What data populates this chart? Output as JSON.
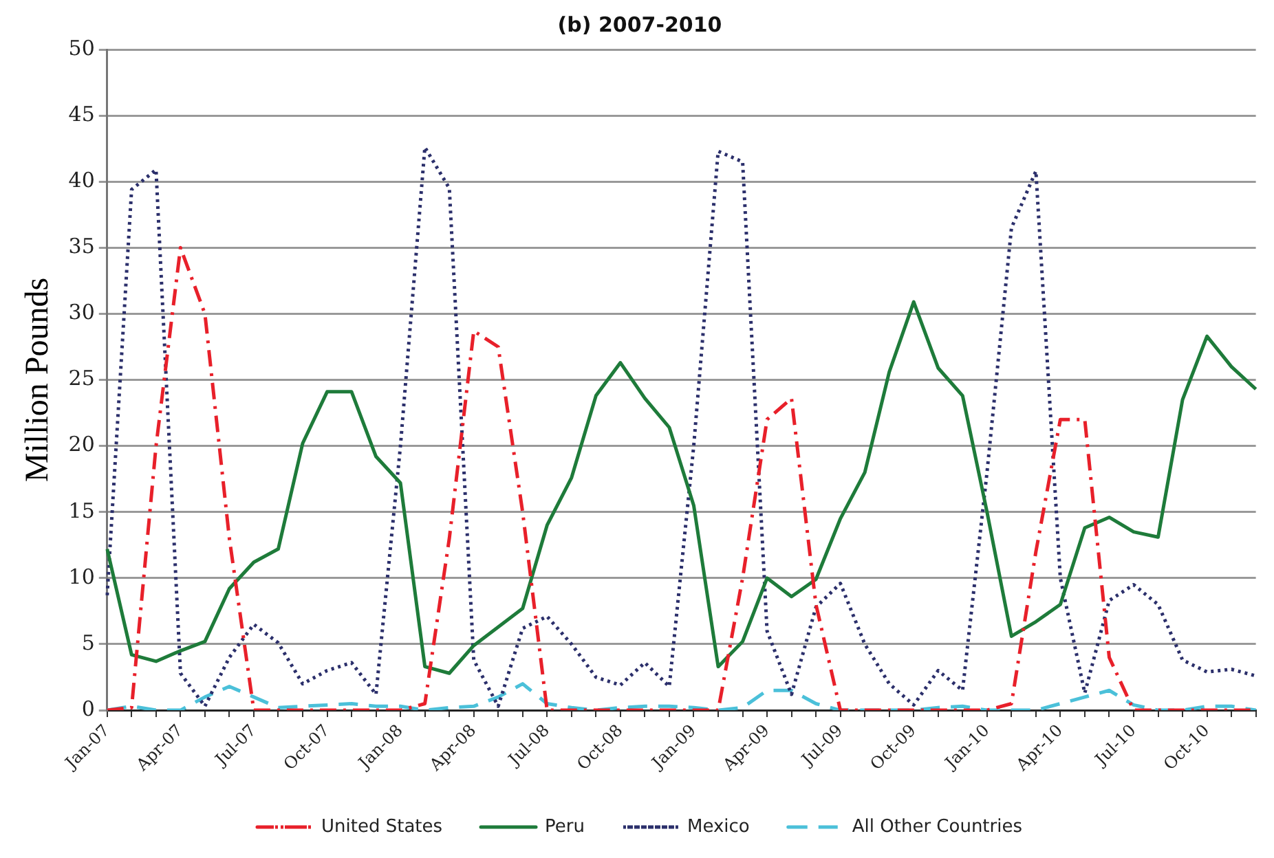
{
  "chart_data": {
    "type": "line",
    "title": "(b) 2007-2010",
    "ylabel": "Million Pounds",
    "categories": [
      "Jan-07",
      null,
      null,
      "Apr-07",
      null,
      null,
      "Jul-07",
      null,
      null,
      "Oct-07",
      null,
      null,
      "Jan-08",
      null,
      null,
      "Apr-08",
      null,
      null,
      "Jul-08",
      null,
      null,
      "Oct-08",
      null,
      null,
      "Jan-09",
      null,
      null,
      "Apr-09",
      null,
      null,
      "Jul-09",
      null,
      null,
      "Oct-09",
      null,
      null,
      "Jan-10",
      null,
      null,
      "Apr-10",
      null,
      null,
      "Jul-10",
      null,
      null,
      "Oct-10",
      null,
      null
    ],
    "series": [
      {
        "name": "United States",
        "color": "#e8202a",
        "line_style": "dashdot",
        "values": [
          0,
          0.2,
          20,
          35,
          30,
          13,
          0,
          0,
          0,
          0,
          0,
          0,
          0,
          0.5,
          13,
          28.7,
          27.5,
          15,
          0,
          0,
          0,
          0,
          0,
          0,
          0,
          0,
          10,
          22,
          23.6,
          8,
          0,
          0,
          0,
          0,
          0,
          0,
          0,
          0.5,
          12,
          22,
          22,
          4,
          0,
          0,
          0,
          0,
          0,
          0
        ]
      },
      {
        "name": "Peru",
        "color": "#1e7b3a",
        "line_style": "solid",
        "values": [
          12.2,
          4.2,
          3.7,
          4.5,
          5.2,
          9.2,
          11.2,
          12.2,
          20.2,
          24.1,
          24.1,
          19.2,
          17.2,
          3.3,
          2.8,
          4.9,
          6.3,
          7.7,
          14,
          17.6,
          23.8,
          26.3,
          23.6,
          21.4,
          15.5,
          3.3,
          5.2,
          10,
          8.6,
          9.9,
          14.5,
          18,
          25.6,
          30.9,
          25.9,
          23.8,
          15,
          5.6,
          6.7,
          8,
          13.8,
          14.6,
          13.5,
          13.1,
          23.5,
          28.3,
          26,
          24.3
        ]
      },
      {
        "name": "Mexico",
        "color": "#2b2f6b",
        "line_style": "dotted",
        "values": [
          8.7,
          39.4,
          40.9,
          2.8,
          0.3,
          4,
          6.5,
          5.1,
          2,
          3,
          3.6,
          1.2,
          20,
          42.6,
          39.5,
          3.8,
          0.3,
          6.2,
          7.1,
          5,
          2.5,
          1.9,
          3.6,
          1.8,
          20,
          42.3,
          41.5,
          6,
          1.2,
          7.8,
          9.6,
          5,
          2,
          0.4,
          3,
          1.5,
          18,
          36.5,
          40.8,
          10,
          1.3,
          8.3,
          9.5,
          8,
          3.8,
          2.9,
          3.1,
          2.6
        ]
      },
      {
        "name": "All Other Countries",
        "color": "#4bc0d9",
        "line_style": "dashed",
        "values": [
          0,
          0.3,
          0,
          0,
          1,
          1.8,
          1,
          0.2,
          0.3,
          0.4,
          0.5,
          0.3,
          0.3,
          0,
          0.2,
          0.3,
          1,
          2,
          0.5,
          0.2,
          0,
          0.2,
          0.3,
          0.3,
          0.2,
          0,
          0.2,
          1.5,
          1.5,
          0.5,
          0,
          0,
          0,
          0,
          0.2,
          0.3,
          0,
          0,
          0,
          0.5,
          1,
          1.5,
          0.4,
          0,
          0,
          0.3,
          0.3,
          0
        ]
      }
    ],
    "ylim": [
      0,
      50
    ],
    "yticks": [
      0,
      5,
      10,
      15,
      20,
      25,
      30,
      35,
      40,
      45,
      50
    ],
    "grid": "y",
    "legend": "bottom",
    "marker": "none"
  }
}
